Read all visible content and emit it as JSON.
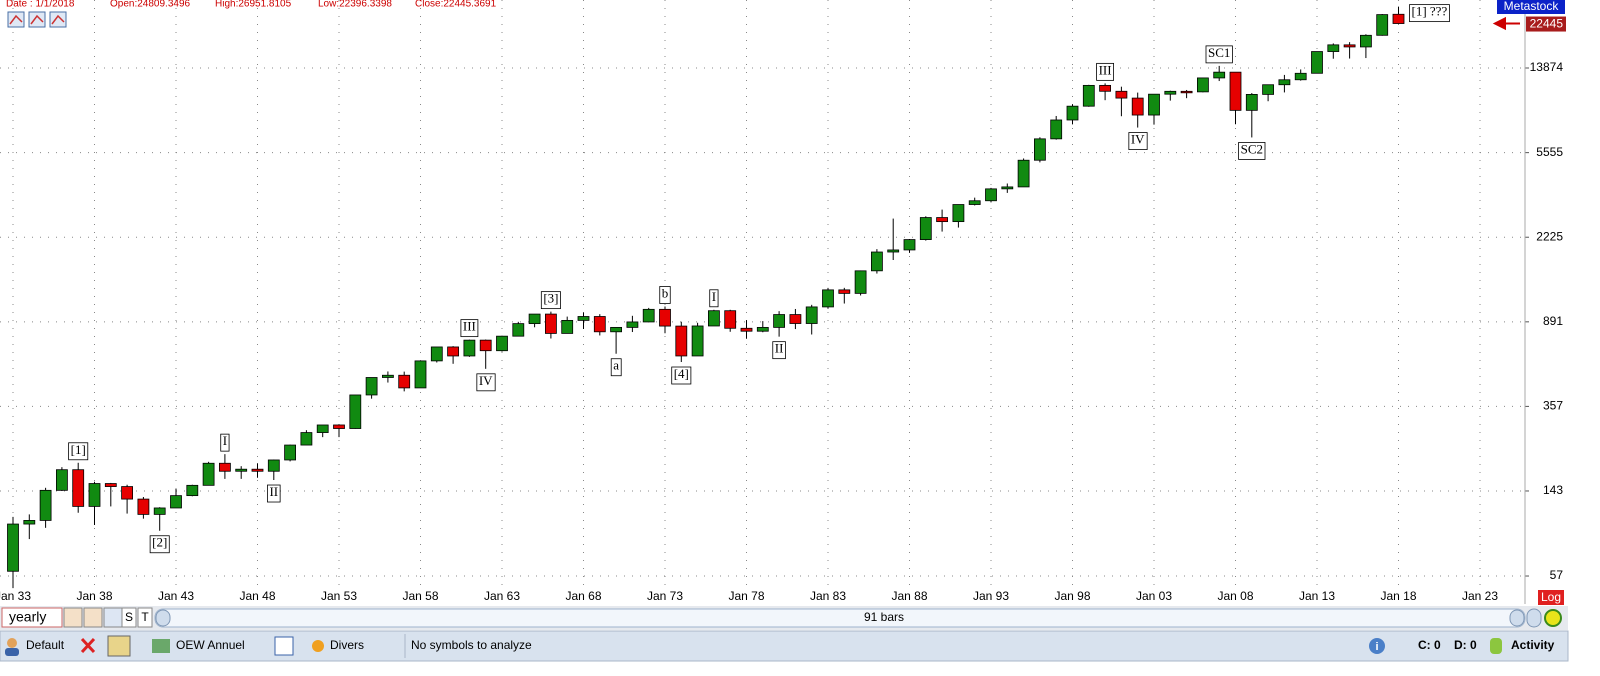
{
  "header": {
    "date": "Date : 1/1/2018",
    "open": "Open:24809.3496",
    "high": "High:26951.8105",
    "low": "Low:22396.3398",
    "close": "Close:22445.3691"
  },
  "brand": "Metastock",
  "chart_data": {
    "type": "candlestick",
    "log_scale": true,
    "grid": true,
    "up_color": "#118a11",
    "down_color": "#e60000",
    "categories": [
      "Jan 33",
      null,
      null,
      null,
      null,
      "Jan 38",
      null,
      null,
      null,
      null,
      "Jan 43",
      null,
      null,
      null,
      null,
      "Jan 48",
      null,
      null,
      null,
      null,
      "Jan 53",
      null,
      null,
      null,
      null,
      "Jan 58",
      null,
      null,
      null,
      null,
      "Jan 63",
      null,
      null,
      null,
      null,
      "Jan 68",
      null,
      null,
      null,
      null,
      "Jan 73",
      null,
      null,
      null,
      null,
      "Jan 78",
      null,
      null,
      null,
      null,
      "Jan 83",
      null,
      null,
      null,
      null,
      "Jan 88",
      null,
      null,
      null,
      null,
      "Jan 93",
      null,
      null,
      null,
      null,
      "Jan 98",
      null,
      null,
      null,
      null,
      "Jan 03",
      null,
      null,
      null,
      null,
      "Jan 08",
      null,
      null,
      null,
      null,
      "Jan 13",
      null,
      null,
      null,
      null,
      "Jan 18",
      null,
      null,
      null,
      null,
      "Jan 23"
    ],
    "open": [
      60,
      100,
      104,
      144,
      180,
      121,
      155,
      150,
      131,
      111,
      119,
      136,
      152,
      193,
      177,
      181,
      177,
      200,
      235,
      269,
      292,
      281,
      404,
      488,
      500,
      436,
      584,
      679,
      616,
      731,
      652,
      763,
      874,
      969,
      786,
      905,
      944,
      800,
      839,
      890,
      1020,
      851,
      616,
      852,
      1005,
      831,
      805,
      839,
      964,
      875,
      1047,
      1259,
      1212,
      1547,
      1896,
      1939,
      2169,
      2753,
      2634,
      3169,
      3301,
      3754,
      3834,
      5117,
      6448,
      7908,
      9181,
      11497,
      10787,
      10021,
      8342,
      10454,
      10783,
      10718,
      12463,
      13265,
      8776,
      10428,
      11578,
      12218,
      13104,
      16577,
      17823,
      17425,
      19763,
      24809.3496,
      null,
      null,
      null,
      null,
      null
    ],
    "high": [
      108,
      111,
      148,
      185,
      194,
      158,
      156,
      153,
      134,
      120,
      146,
      153,
      196,
      213,
      187,
      193,
      201,
      236,
      276,
      292,
      294,
      404,
      488,
      521,
      520,
      584,
      679,
      685,
      735,
      736,
      767,
      891,
      969,
      995,
      943,
      985,
      968,
      842,
      951,
      1036,
      1052,
      892,
      882,
      1015,
      1015,
      908,
      898,
      1000,
      1024,
      1071,
      1287,
      1287,
      1553,
      1956,
      2722,
      2184,
      2791,
      3000,
      3169,
      3414,
      3794,
      3978,
      5216,
      6561,
      8259,
      9374,
      11569,
      11750,
      11337,
      10635,
      10454,
      10854,
      10940,
      12510,
      14198,
      13279,
      10580,
      11585,
      12876,
      13661,
      16577,
      18103,
      18351,
      19987,
      24876,
      26951.8105,
      null,
      null,
      null,
      null,
      null
    ],
    "low": [
      50,
      85,
      96,
      143,
      113,
      99,
      121,
      112,
      106,
      93,
      119,
      135,
      152,
      163,
      163,
      165,
      161,
      197,
      235,
      256,
      256,
      280,
      388,
      462,
      420,
      436,
      574,
      566,
      610,
      536,
      646,
      763,
      840,
      744,
      786,
      825,
      769,
      631,
      798,
      889,
      788,
      577,
      616,
      852,
      800,
      742,
      796,
      759,
      824,
      777,
      1027,
      1086,
      1185,
      1502,
      1739,
      1879,
      2145,
      2365,
      2470,
      3137,
      3242,
      3594,
      3832,
      5000,
      6391,
      7539,
      9121,
      9796,
      8236,
      7286,
      7524,
      9750,
      10012,
      10667,
      12050,
      7552,
      6547,
      9686,
      10655,
      12101,
      13104,
      15340,
      15370,
      15450,
      19677,
      22396.3398,
      null,
      null,
      null,
      null,
      null
    ],
    "close": [
      100,
      104,
      144,
      180,
      121,
      155,
      150,
      131,
      111,
      119,
      136,
      152,
      193,
      177,
      181,
      177,
      200,
      235,
      269,
      292,
      281,
      404,
      488,
      500,
      436,
      584,
      679,
      616,
      731,
      652,
      763,
      874,
      969,
      786,
      905,
      944,
      800,
      839,
      890,
      1020,
      851,
      616,
      852,
      1005,
      831,
      805,
      839,
      964,
      875,
      1047,
      1259,
      1212,
      1547,
      1896,
      1939,
      2169,
      2753,
      2634,
      3169,
      3301,
      3754,
      3834,
      5117,
      6448,
      7908,
      9181,
      11497,
      10787,
      10021,
      8342,
      10454,
      10783,
      10718,
      12463,
      13265,
      8776,
      10428,
      11578,
      12218,
      13104,
      16577,
      17823,
      17425,
      19763,
      24719,
      22445.3691,
      null,
      null,
      null,
      null,
      null
    ],
    "ylim": [
      49,
      28951
    ],
    "yticks": [
      57,
      143,
      357,
      891,
      2225,
      5555,
      13874
    ],
    "last_value": {
      "value": 22445.3691,
      "label": "22445"
    },
    "annotations": [
      {
        "text": "[1]",
        "bar": 4,
        "position": "above"
      },
      {
        "text": "[2]",
        "bar": 9,
        "position": "below"
      },
      {
        "text": "I",
        "bar": 13,
        "position": "above"
      },
      {
        "text": "II",
        "bar": 16,
        "position": "below"
      },
      {
        "text": "III",
        "bar": 28,
        "position": "above"
      },
      {
        "text": "IV",
        "bar": 29,
        "position": "below"
      },
      {
        "text": "[3]",
        "bar": 33,
        "position": "above"
      },
      {
        "text": "a",
        "bar": 37,
        "position": "below"
      },
      {
        "text": "b",
        "bar": 40,
        "position": "above"
      },
      {
        "text": "[4]",
        "bar": 41,
        "position": "below"
      },
      {
        "text": "I",
        "bar": 43,
        "position": "above"
      },
      {
        "text": "II",
        "bar": 47,
        "position": "below"
      },
      {
        "text": "III",
        "bar": 67,
        "position": "above"
      },
      {
        "text": "IV",
        "bar": 69,
        "position": "below"
      },
      {
        "text": "SC1",
        "bar": 74,
        "position": "above"
      },
      {
        "text": "SC2",
        "bar": 76,
        "position": "below"
      },
      {
        "text": "[1] ???",
        "bar": 85,
        "position": "right"
      }
    ]
  },
  "toolbar": {
    "period": "yearly",
    "buttons": [
      "S",
      "T"
    ],
    "bars": "91 bars",
    "scale": "Log"
  },
  "status_bar": {
    "layout": "Default",
    "template": "OEW Annuel",
    "menu": "Divers",
    "message": "No symbols to analyze",
    "c": "C: 0",
    "d": "D: 0",
    "activity": "Activity"
  }
}
